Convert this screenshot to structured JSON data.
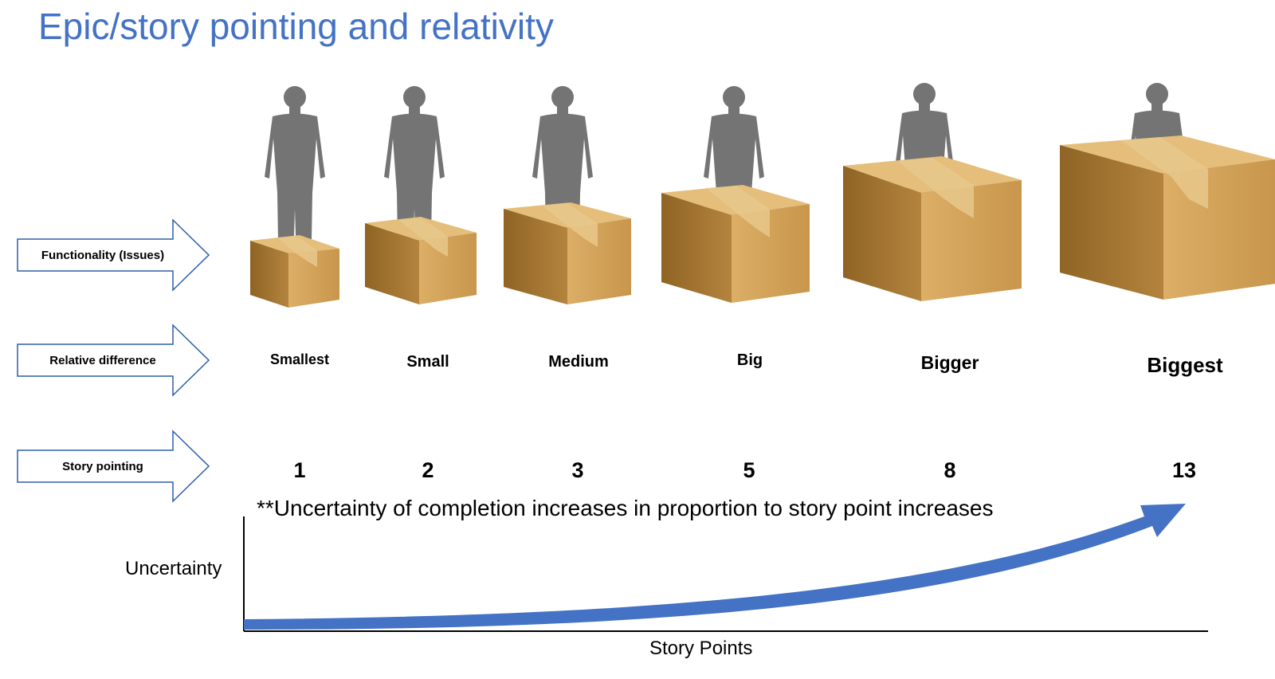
{
  "title": "Epic/story pointing and relativity",
  "row_labels": {
    "functionality": "Functionality (Issues)",
    "relative": "Relative difference",
    "pointing": "Story pointing"
  },
  "sizes": [
    "Smallest",
    "Small",
    "Medium",
    "Big",
    "Bigger",
    "Biggest"
  ],
  "points": [
    "1",
    "2",
    "3",
    "5",
    "8",
    "13"
  ],
  "note": "**Uncertainty of completion increases in proportion to story point increases",
  "axes": {
    "y": "Uncertainty",
    "x": "Story Points"
  },
  "colors": {
    "title": "#4472c4",
    "arrow_outline": "#2e5fa8",
    "curve": "#4472c4",
    "person": "#747474",
    "box_front": "#d4a45a",
    "box_side": "#a87a35",
    "box_top": "#e4be7a"
  }
}
